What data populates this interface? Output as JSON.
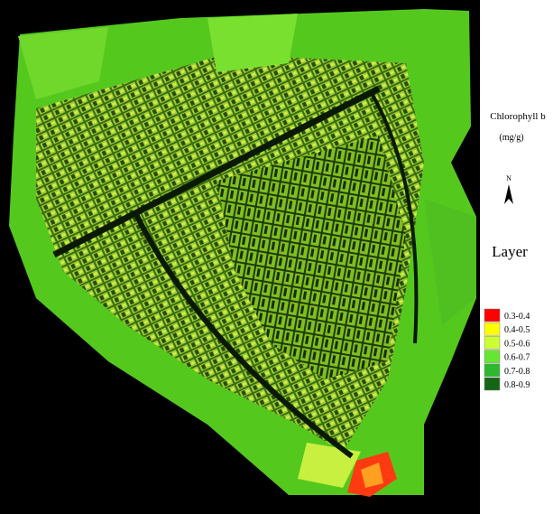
{
  "legend": {
    "title": "Chlorophyll b",
    "unit": "(mg/g)",
    "north": "N",
    "layer_title": "Layer",
    "items": [
      {
        "label": "0.3-0.4",
        "color": "#ff0000"
      },
      {
        "label": "0.4-0.5",
        "color": "#ffff00"
      },
      {
        "label": "0.5-0.6",
        "color": "#ccff33"
      },
      {
        "label": "0.6-0.7",
        "color": "#66e633"
      },
      {
        "label": "0.7-0.8",
        "color": "#2eb82e"
      },
      {
        "label": "0.8-0.9",
        "color": "#146614"
      }
    ]
  }
}
